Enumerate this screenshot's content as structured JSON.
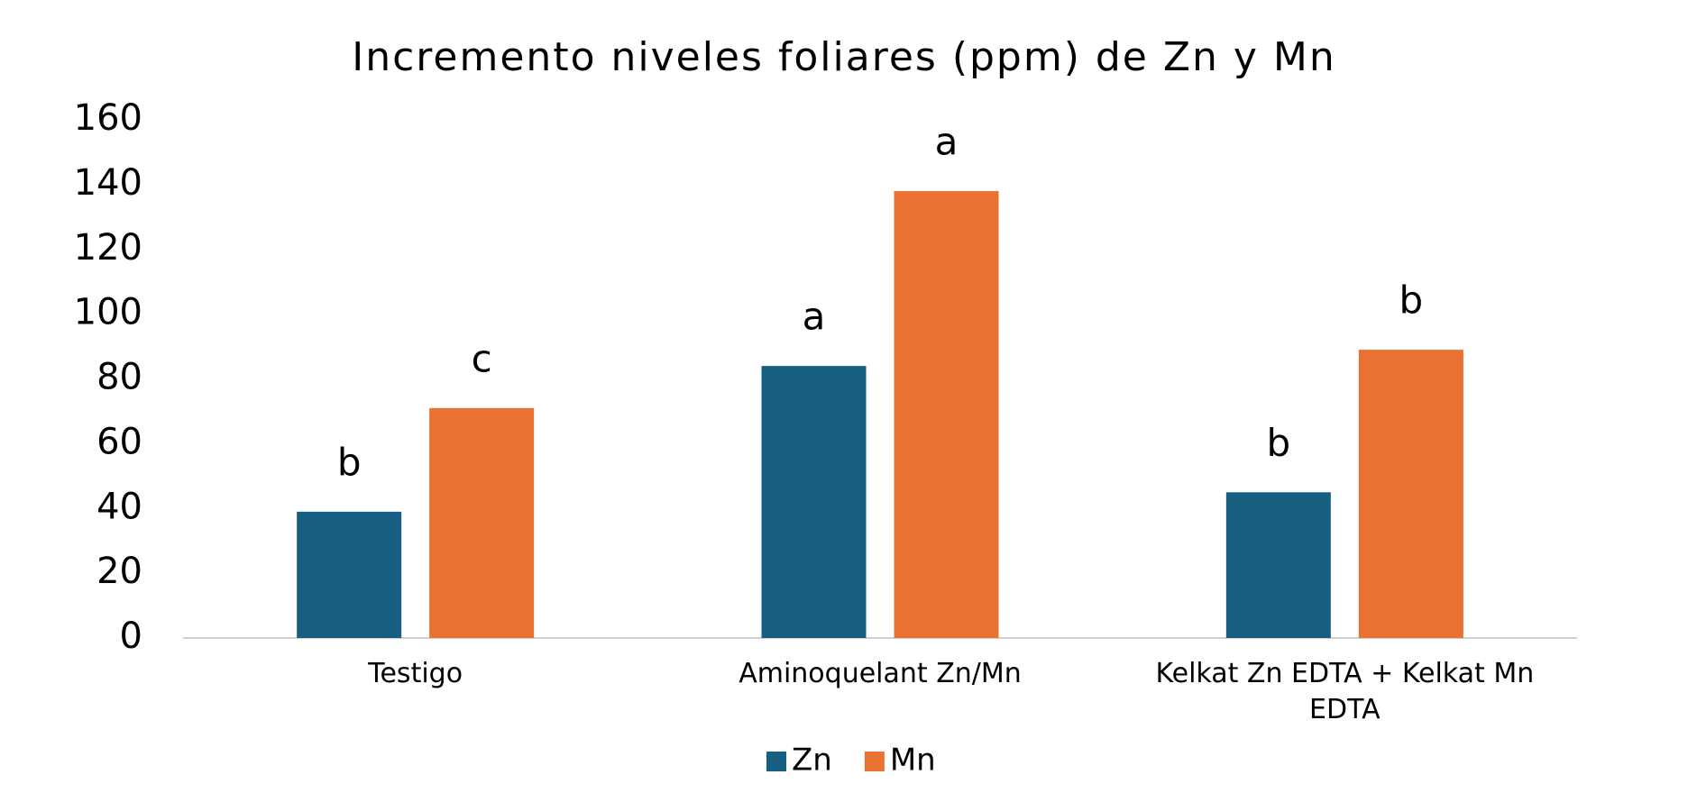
{
  "chart_data": {
    "type": "bar",
    "title": "Incremento niveles foliares (ppm) de Zn y Mn",
    "categories": [
      "Testigo",
      "Aminoquelant Zn/Mn",
      "Kelkat Zn EDTA + Kelkat Mn EDTA"
    ],
    "series": [
      {
        "name": "Zn",
        "color": "#175f82",
        "values": [
          39,
          84,
          45
        ],
        "annotations": [
          "b",
          "a",
          "b"
        ]
      },
      {
        "name": "Mn",
        "color": "#e97132",
        "values": [
          71,
          138,
          89
        ],
        "annotations": [
          "c",
          "a",
          "b"
        ]
      }
    ],
    "ylim": [
      0,
      160
    ],
    "yticks": [
      0,
      20,
      40,
      60,
      80,
      100,
      120,
      140,
      160
    ],
    "grid": false,
    "legend": "bottom"
  }
}
